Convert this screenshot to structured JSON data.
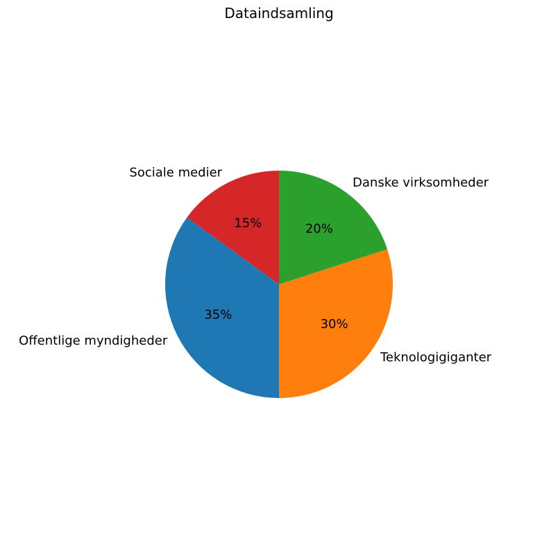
{
  "chart_data": {
    "type": "pie",
    "title": "Dataindsamling",
    "start_angle_deg": 90,
    "direction": "counterclockwise",
    "slices": [
      {
        "label": "Sociale medier",
        "value": 15,
        "pct_label": "15%",
        "color": "#d62728"
      },
      {
        "label": "Offentlige myndigheder",
        "value": 35,
        "pct_label": "35%",
        "color": "#1f77b4"
      },
      {
        "label": "Teknologigiganter",
        "value": 30,
        "pct_label": "30%",
        "color": "#ff7f0e"
      },
      {
        "label": "Danske virksomheder",
        "value": 20,
        "pct_label": "20%",
        "color": "#2ca02c"
      }
    ]
  }
}
